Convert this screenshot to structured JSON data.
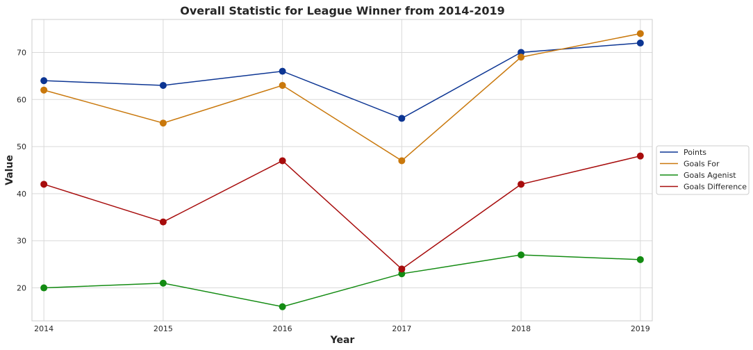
{
  "chart_data": {
    "type": "line",
    "title": "Overall Statistic for League Winner from 2014-2019",
    "xlabel": "Year",
    "ylabel": "Value",
    "x": [
      2014,
      2015,
      2016,
      2017,
      2018,
      2019
    ],
    "xlim": [
      2013.9,
      2019.1
    ],
    "ylim": [
      13,
      77
    ],
    "yticks": [
      20,
      30,
      40,
      50,
      60,
      70
    ],
    "grid": true,
    "legend_position": "outside-right",
    "series": [
      {
        "name": "Points",
        "color": "#0c3593",
        "values": [
          64,
          63,
          66,
          56,
          70,
          72
        ]
      },
      {
        "name": "Goals For",
        "color": "#c9780c",
        "values": [
          62,
          55,
          63,
          47,
          69,
          74
        ]
      },
      {
        "name": "Goals Agenist",
        "color": "#138b12",
        "values": [
          20,
          21,
          16,
          23,
          27,
          26
        ]
      },
      {
        "name": "Goals Difference",
        "color": "#a70c0c",
        "values": [
          42,
          34,
          47,
          24,
          42,
          48
        ]
      }
    ]
  }
}
